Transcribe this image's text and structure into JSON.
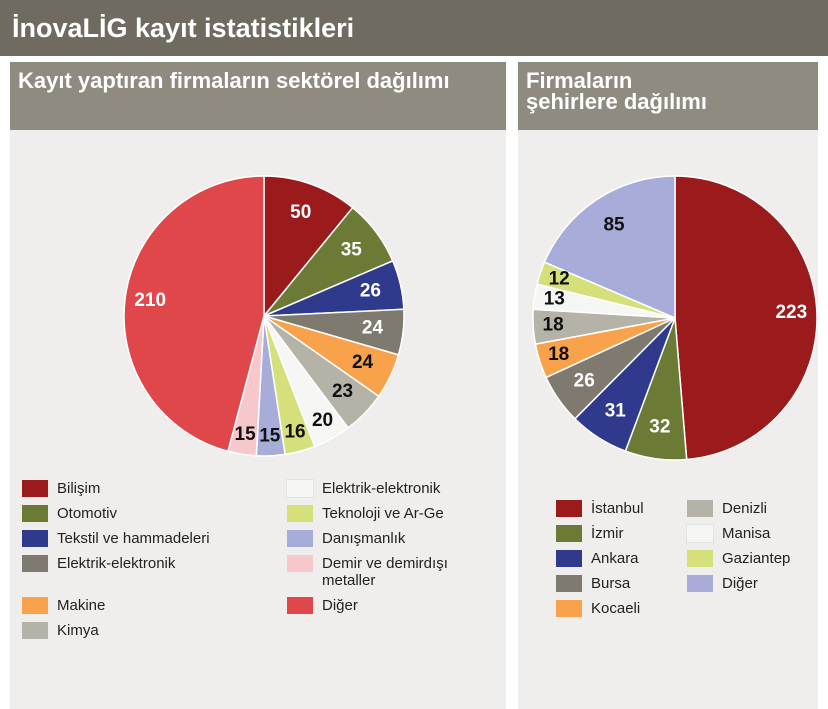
{
  "title": "İnovaLİG kayıt istatistikleri",
  "chart_data": [
    {
      "type": "pie",
      "title": "Kayıt yaptıran firmaların sektörel dağılımı",
      "categories": [
        "Bilişim",
        "Otomotiv",
        "Tekstil ve hammadeleri",
        "Elektrik-elektronik",
        "Makine",
        "Kimya",
        "Elektrik-elektronik",
        "Teknoloji ve Ar-Ge",
        "Danışmanlık",
        "Demir ve demirdışı metaller",
        "Diğer"
      ],
      "values": [
        50,
        35,
        26,
        24,
        24,
        23,
        20,
        16,
        15,
        15,
        210
      ],
      "colors": [
        "#9b1a1c",
        "#6b7a34",
        "#2f3a8c",
        "#7e7a6f",
        "#f8a24c",
        "#b5b2a8",
        "#f6f6f4",
        "#d6e07a",
        "#a7acd9",
        "#f6c8cb",
        "#e0474a"
      ]
    },
    {
      "type": "pie",
      "title": "Firmaların şehirlere dağılımı",
      "categories": [
        "İstanbul",
        "İzmir",
        "Ankara",
        "Bursa",
        "Kocaeli",
        "Denizli",
        "Manisa",
        "Gaziantep",
        "Diğer"
      ],
      "values": [
        223,
        32,
        31,
        26,
        18,
        18,
        13,
        12,
        85
      ],
      "colors": [
        "#9b1a1c",
        "#6b7a34",
        "#2f3a8c",
        "#7e7a6f",
        "#f8a24c",
        "#b5b2a8",
        "#f6f6f4",
        "#d6e07a",
        "#a7acd9"
      ]
    }
  ]
}
